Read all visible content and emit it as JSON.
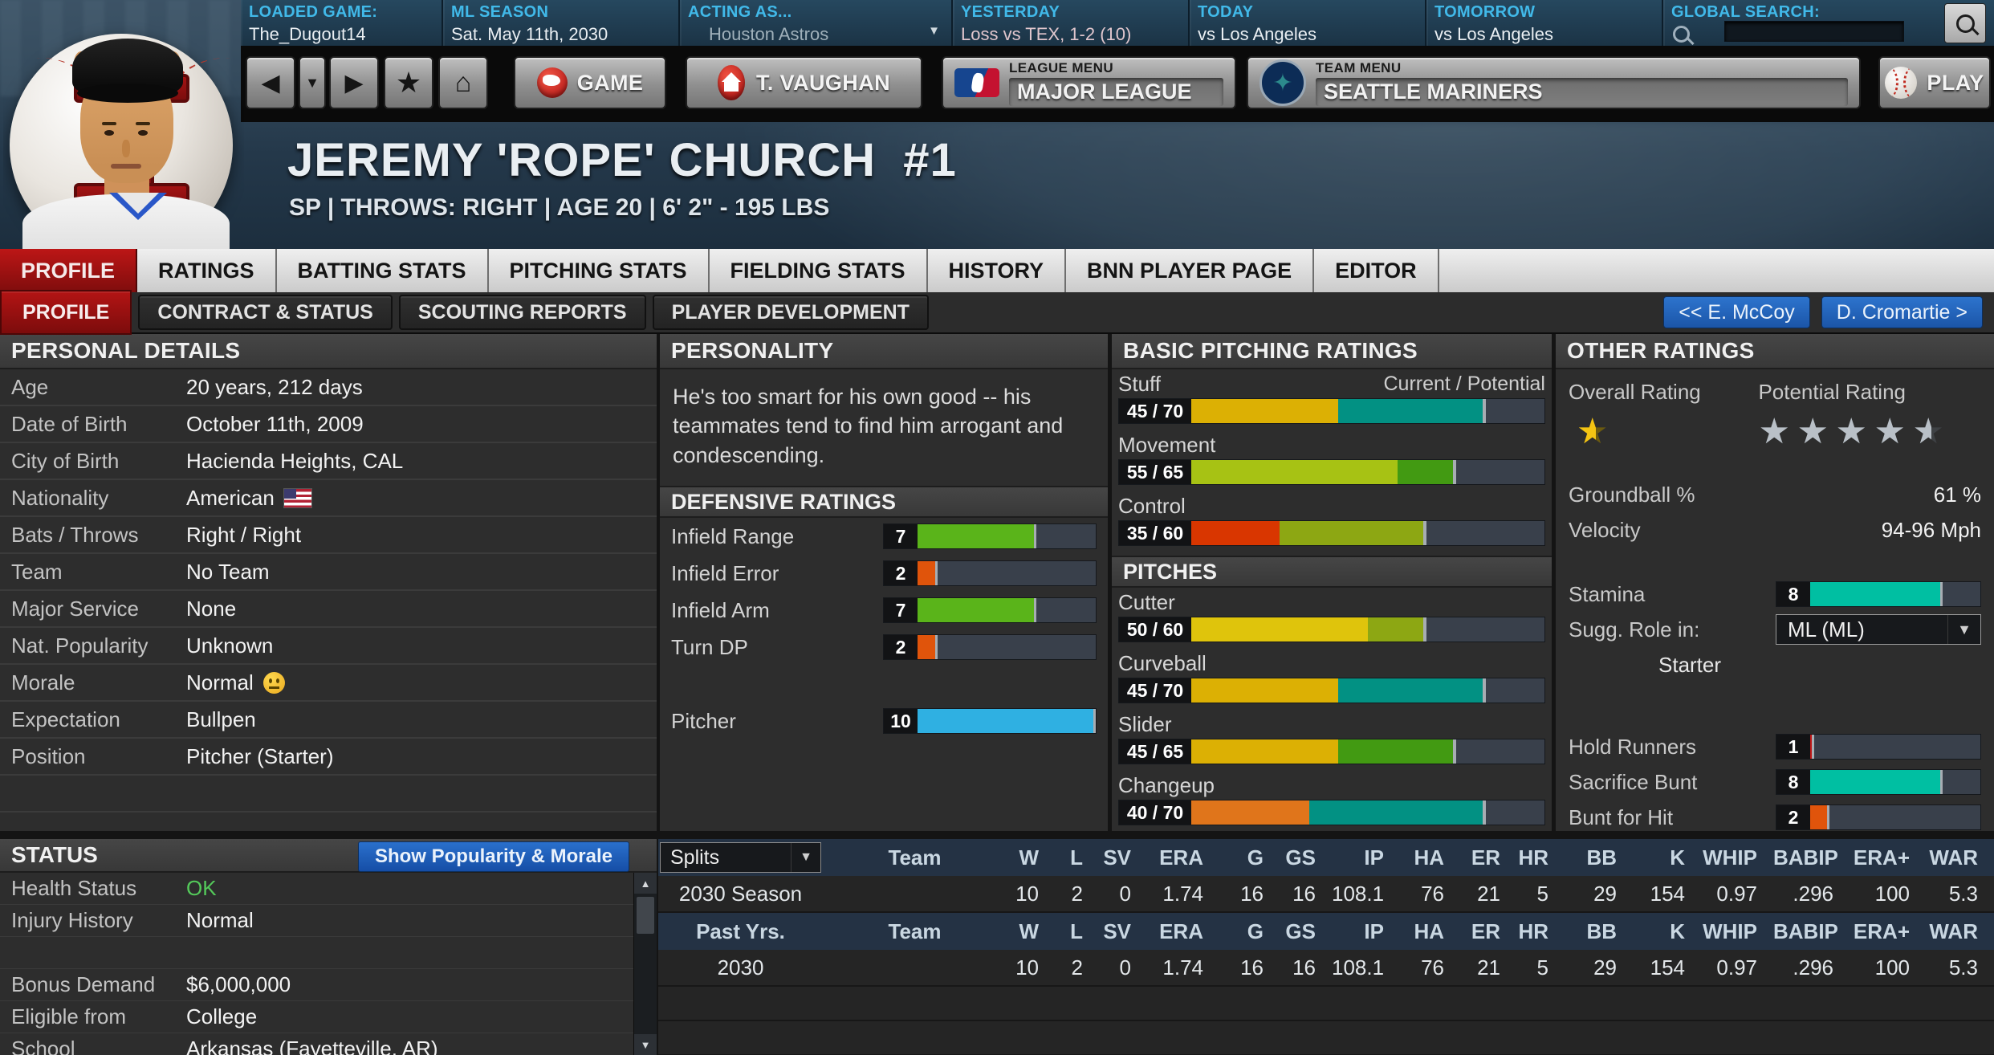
{
  "top_bar": {
    "loaded_game": {
      "label": "LOADED GAME:",
      "value": "The_Dugout14"
    },
    "ml_season": {
      "label": "ML SEASON",
      "value": "Sat. May 11th, 2030"
    },
    "acting_as": {
      "label": "ACTING AS...",
      "value": "Houston Astros"
    },
    "yesterday": {
      "label": "YESTERDAY",
      "value": "Loss vs TEX, 1-2 (10)"
    },
    "today": {
      "label": "TODAY",
      "value": "vs Los Angeles"
    },
    "tomorrow": {
      "label": "TOMORROW",
      "value": "vs Los Angeles"
    },
    "global_search": {
      "label": "GLOBAL SEARCH:"
    }
  },
  "nav": {
    "game_button": "GAME",
    "manager_button": "T. VAUGHAN",
    "league_menu": {
      "label": "LEAGUE MENU",
      "value": "MAJOR LEAGUE"
    },
    "team_menu": {
      "label": "TEAM MENU",
      "value": "SEATTLE MARINERS"
    },
    "play_button": "PLAY"
  },
  "player": {
    "name": "JEREMY 'ROPE' CHURCH  #1",
    "subtitle": "SP | THROWS: RIGHT | AGE 20 | 6' 2\" - 195 LBS"
  },
  "tabs": {
    "items": [
      {
        "label": "PROFILE",
        "active": true
      },
      {
        "label": "RATINGS",
        "active": false
      },
      {
        "label": "BATTING STATS",
        "active": false
      },
      {
        "label": "PITCHING STATS",
        "active": false
      },
      {
        "label": "FIELDING STATS",
        "active": false
      },
      {
        "label": "HISTORY",
        "active": false
      },
      {
        "label": "BNN PLAYER PAGE",
        "active": false
      },
      {
        "label": "EDITOR",
        "active": false
      }
    ]
  },
  "subtabs": {
    "items": [
      {
        "label": "PROFILE",
        "active": true
      },
      {
        "label": "CONTRACT & STATUS",
        "active": false
      },
      {
        "label": "SCOUTING REPORTS",
        "active": false
      },
      {
        "label": "PLAYER DEVELOPMENT",
        "active": false
      }
    ]
  },
  "player_nav": {
    "prev": "<< E. McCoy",
    "next": "D. Cromartie >"
  },
  "personal_details": {
    "title": "PERSONAL DETAILS",
    "rows": [
      {
        "label": "Age",
        "value": "20 years, 212 days"
      },
      {
        "label": "Date of Birth",
        "value": "October 11th, 2009"
      },
      {
        "label": "City of Birth",
        "value": "Hacienda Heights, CAL"
      },
      {
        "label": "Nationality",
        "value": "American",
        "flag": "us"
      },
      {
        "label": "Bats / Throws",
        "value": "Right / Right"
      },
      {
        "label": "Team",
        "value": "No Team"
      },
      {
        "label": "Major Service",
        "value": "None"
      },
      {
        "label": "Nat. Popularity",
        "value": "Unknown"
      },
      {
        "label": "Morale",
        "value": "Normal",
        "emoji": "neutral"
      },
      {
        "label": "Expectation",
        "value": "Bullpen"
      },
      {
        "label": "Position",
        "value": "Pitcher (Starter)"
      },
      {
        "label": "",
        "value": ""
      }
    ]
  },
  "personality": {
    "title": "PERSONALITY",
    "text": "He's too smart for his own good -- his teammates tend to find him arrogant and condescending."
  },
  "defensive_ratings": {
    "title": "DEFENSIVE RATINGS",
    "items": [
      {
        "label": "Infield Range",
        "value": 7
      },
      {
        "label": "Infield Error",
        "value": 2
      },
      {
        "label": "Infield Arm",
        "value": 7
      },
      {
        "label": "Turn DP",
        "value": 2
      },
      {
        "label": "Pitcher",
        "value": 10,
        "gap_before": true
      }
    ]
  },
  "basic_pitching": {
    "title": "BASIC PITCHING RATINGS",
    "scale_note": "Current / Potential",
    "items": [
      {
        "label": "Stuff",
        "current": 45,
        "potential": 70
      },
      {
        "label": "Movement",
        "current": 55,
        "potential": 65
      },
      {
        "label": "Control",
        "current": 35,
        "potential": 60
      }
    ]
  },
  "pitches": {
    "title": "PITCHES",
    "items": [
      {
        "label": "Cutter",
        "current": 50,
        "potential": 60
      },
      {
        "label": "Curveball",
        "current": 45,
        "potential": 70
      },
      {
        "label": "Slider",
        "current": 45,
        "potential": 65
      },
      {
        "label": "Changeup",
        "current": 40,
        "potential": 70
      }
    ]
  },
  "other_ratings": {
    "title": "OTHER RATINGS",
    "overall_label": "Overall Rating",
    "potential_label": "Potential Rating",
    "overall_stars": {
      "count": 1,
      "value": 0.5,
      "color": "#f4c413",
      "empty_color": "#6b5a10"
    },
    "potential_stars": {
      "count": 5,
      "value": 4.5,
      "color": "#b9c0c7",
      "empty_color": "#3e4144"
    },
    "groundball": {
      "label": "Groundball %",
      "value": "61 %"
    },
    "velocity": {
      "label": "Velocity",
      "value": "94-96 Mph"
    },
    "stamina": {
      "label": "Stamina",
      "value": 8
    },
    "sugg_role": {
      "label": "Sugg. Role in:",
      "value": "ML (ML)",
      "role": "Starter"
    },
    "small_bars": [
      {
        "label": "Hold Runners",
        "value": 1
      },
      {
        "label": "Sacrifice Bunt",
        "value": 8
      },
      {
        "label": "Bunt for Hit",
        "value": 2
      }
    ]
  },
  "status": {
    "title": "STATUS",
    "button": "Show Popularity & Morale",
    "rows": [
      {
        "label": "Health Status",
        "value": "OK",
        "value_color": "#54c95a"
      },
      {
        "label": "Injury History",
        "value": "Normal"
      },
      {
        "label": "",
        "value": ""
      },
      {
        "label": "Bonus Demand",
        "value": "$6,000,000"
      },
      {
        "label": "Eligible from",
        "value": "College"
      },
      {
        "label": "School",
        "value": "Arkansas (Fayetteville, AR)"
      }
    ]
  },
  "stats_table": {
    "splits_label": "Splits",
    "past_label": "Past Yrs.",
    "columns": [
      "Team",
      "W",
      "L",
      "SV",
      "ERA",
      "G",
      "GS",
      "IP",
      "HA",
      "ER",
      "HR",
      "BB",
      "K",
      "WHIP",
      "BABIP",
      "ERA+",
      "WAR"
    ],
    "season_row": {
      "label": "2030 Season",
      "values": [
        "",
        "10",
        "2",
        "0",
        "1.74",
        "16",
        "16",
        "108.1",
        "76",
        "21",
        "5",
        "29",
        "154",
        "0.97",
        ".296",
        "100",
        "5.3"
      ]
    },
    "past_row": {
      "label": "2030",
      "values": [
        "",
        "10",
        "2",
        "0",
        "1.74",
        "16",
        "16",
        "108.1",
        "76",
        "21",
        "5",
        "29",
        "154",
        "0.97",
        ".296",
        "100",
        "5.3"
      ]
    },
    "empty_rows": 3
  },
  "rating_colors": {
    "scale20": {
      "35": "#d93600",
      "40": "#e0751b",
      "45": "#dcb004",
      "50": "#dfc40c",
      "55": "#a7c214",
      "60": "#8da713",
      "65": "#429a12",
      "70": "#029183"
    },
    "scale10": {
      "1": "#c01818",
      "2": "#e0540b",
      "7": "#5ab41a",
      "8": "#00bfa2",
      "10": "#2fb0e2"
    },
    "track": "#39404b",
    "cap": "#a7adb3"
  },
  "accent_colors": {
    "active_tab_red": "#a31111",
    "link_cyan": "#41b9e9",
    "button_blue": "#1b5cb4",
    "health_ok_green": "#54c95a"
  }
}
